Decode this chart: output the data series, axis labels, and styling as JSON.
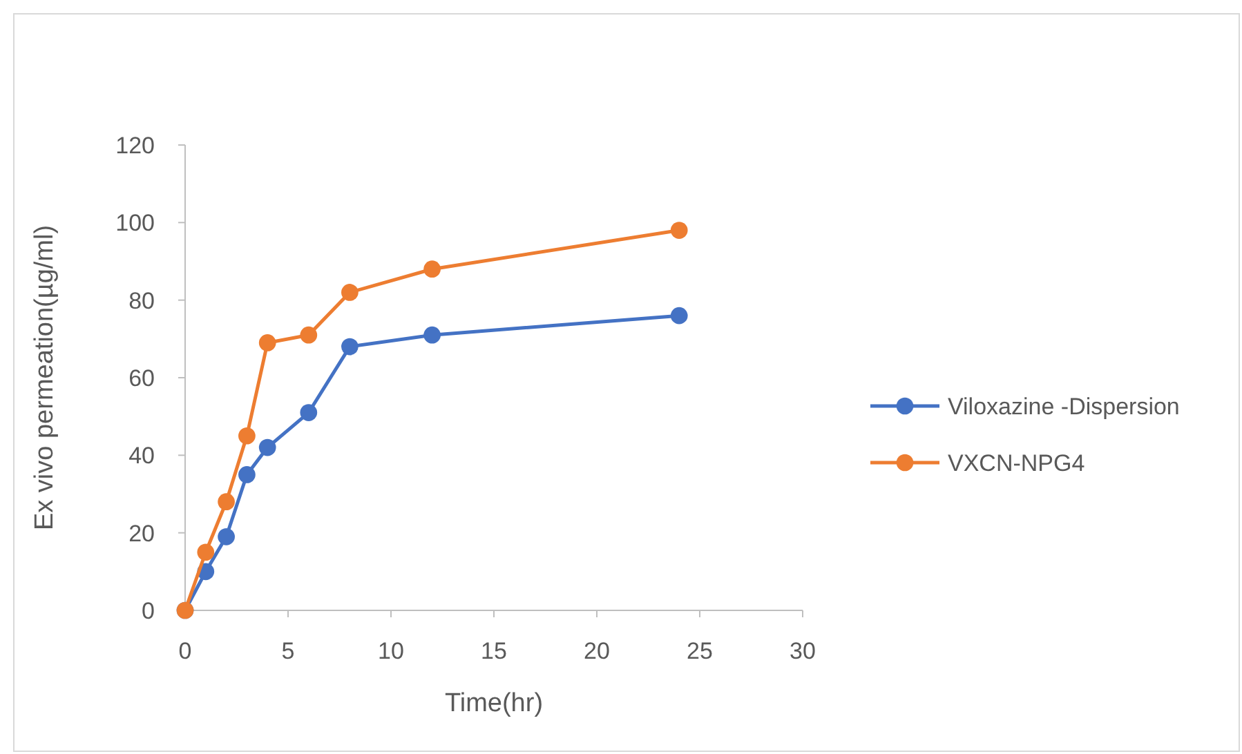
{
  "chart_data": {
    "type": "line",
    "xlabel": "Time(hr)",
    "ylabel": "Ex vivo permeation(µg/ml)",
    "x": [
      0,
      1,
      2,
      3,
      4,
      6,
      8,
      12,
      24
    ],
    "series": [
      {
        "name": "Viloxazine -Dispersion",
        "color": "#4472c4",
        "values": [
          0,
          10,
          19,
          35,
          42,
          51,
          68,
          71,
          76
        ]
      },
      {
        "name": "VXCN-NPG4",
        "color": "#ed7d31",
        "values": [
          0,
          15,
          28,
          45,
          69,
          71,
          82,
          88,
          98
        ]
      }
    ],
    "xlim": [
      0,
      30
    ],
    "xticks": [
      0,
      5,
      10,
      15,
      20,
      25,
      30
    ],
    "ylim": [
      0,
      120
    ],
    "yticks": [
      0,
      20,
      40,
      60,
      80,
      100,
      120
    ],
    "grid": false,
    "legend": "right",
    "marker": "circle",
    "line_style": "solid"
  }
}
